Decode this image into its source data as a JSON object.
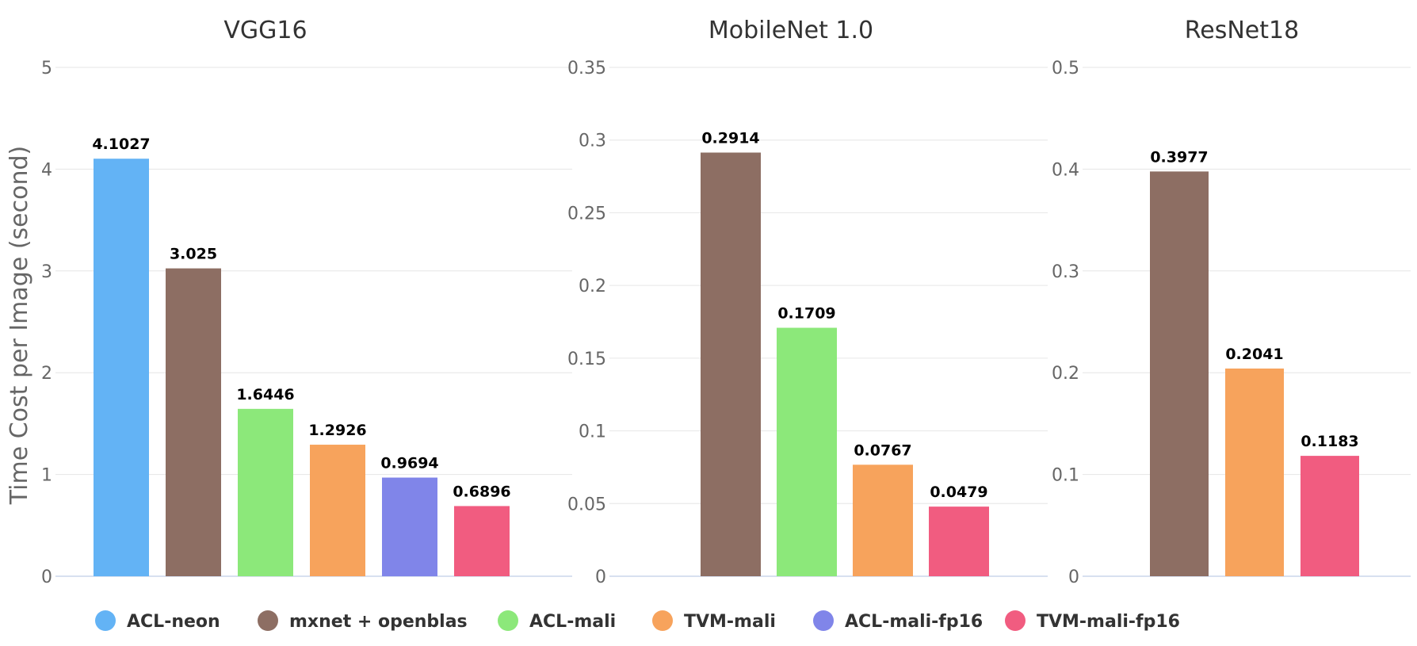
{
  "chart_data": {
    "type": "bar",
    "ylabel": "Time Cost per Image (second)",
    "legend_position": "bottom",
    "grid": true,
    "series": [
      {
        "name": "ACL-neon",
        "color": "#63b3f5"
      },
      {
        "name": "mxnet + openblas",
        "color": "#8d6e63"
      },
      {
        "name": "ACL-mali",
        "color": "#8ce87a"
      },
      {
        "name": "TVM-mali",
        "color": "#f7a35c"
      },
      {
        "name": "ACL-mali-fp16",
        "color": "#8085e9"
      },
      {
        "name": "TVM-mali-fp16",
        "color": "#f15c80"
      }
    ],
    "panels": [
      {
        "title": "VGG16",
        "ylim": [
          0,
          5
        ],
        "ticks": [
          "0",
          "1",
          "2",
          "3",
          "4",
          "5"
        ],
        "bars": [
          {
            "series": "ACL-neon",
            "value": 4.1027,
            "label": "4.1027"
          },
          {
            "series": "mxnet + openblas",
            "value": 3.025,
            "label": "3.025"
          },
          {
            "series": "ACL-mali",
            "value": 1.6446,
            "label": "1.6446"
          },
          {
            "series": "TVM-mali",
            "value": 1.2926,
            "label": "1.2926"
          },
          {
            "series": "ACL-mali-fp16",
            "value": 0.9694,
            "label": "0.9694"
          },
          {
            "series": "TVM-mali-fp16",
            "value": 0.6896,
            "label": "0.6896"
          }
        ]
      },
      {
        "title": "MobileNet 1.0",
        "ylim": [
          0,
          0.35
        ],
        "ticks": [
          "0",
          "0.05",
          "0.1",
          "0.15",
          "0.2",
          "0.25",
          "0.3",
          "0.35"
        ],
        "bars": [
          {
            "series": "mxnet + openblas",
            "value": 0.2914,
            "label": "0.2914"
          },
          {
            "series": "ACL-mali",
            "value": 0.1709,
            "label": "0.1709"
          },
          {
            "series": "TVM-mali",
            "value": 0.0767,
            "label": "0.0767"
          },
          {
            "series": "TVM-mali-fp16",
            "value": 0.0479,
            "label": "0.0479"
          }
        ]
      },
      {
        "title": "ResNet18",
        "ylim": [
          0,
          0.5
        ],
        "ticks": [
          "0",
          "0.1",
          "0.2",
          "0.3",
          "0.4",
          "0.5"
        ],
        "bars": [
          {
            "series": "mxnet + openblas",
            "value": 0.3977,
            "label": "0.3977"
          },
          {
            "series": "TVM-mali",
            "value": 0.2041,
            "label": "0.2041"
          },
          {
            "series": "TVM-mali-fp16",
            "value": 0.1183,
            "label": "0.1183"
          }
        ]
      }
    ]
  }
}
